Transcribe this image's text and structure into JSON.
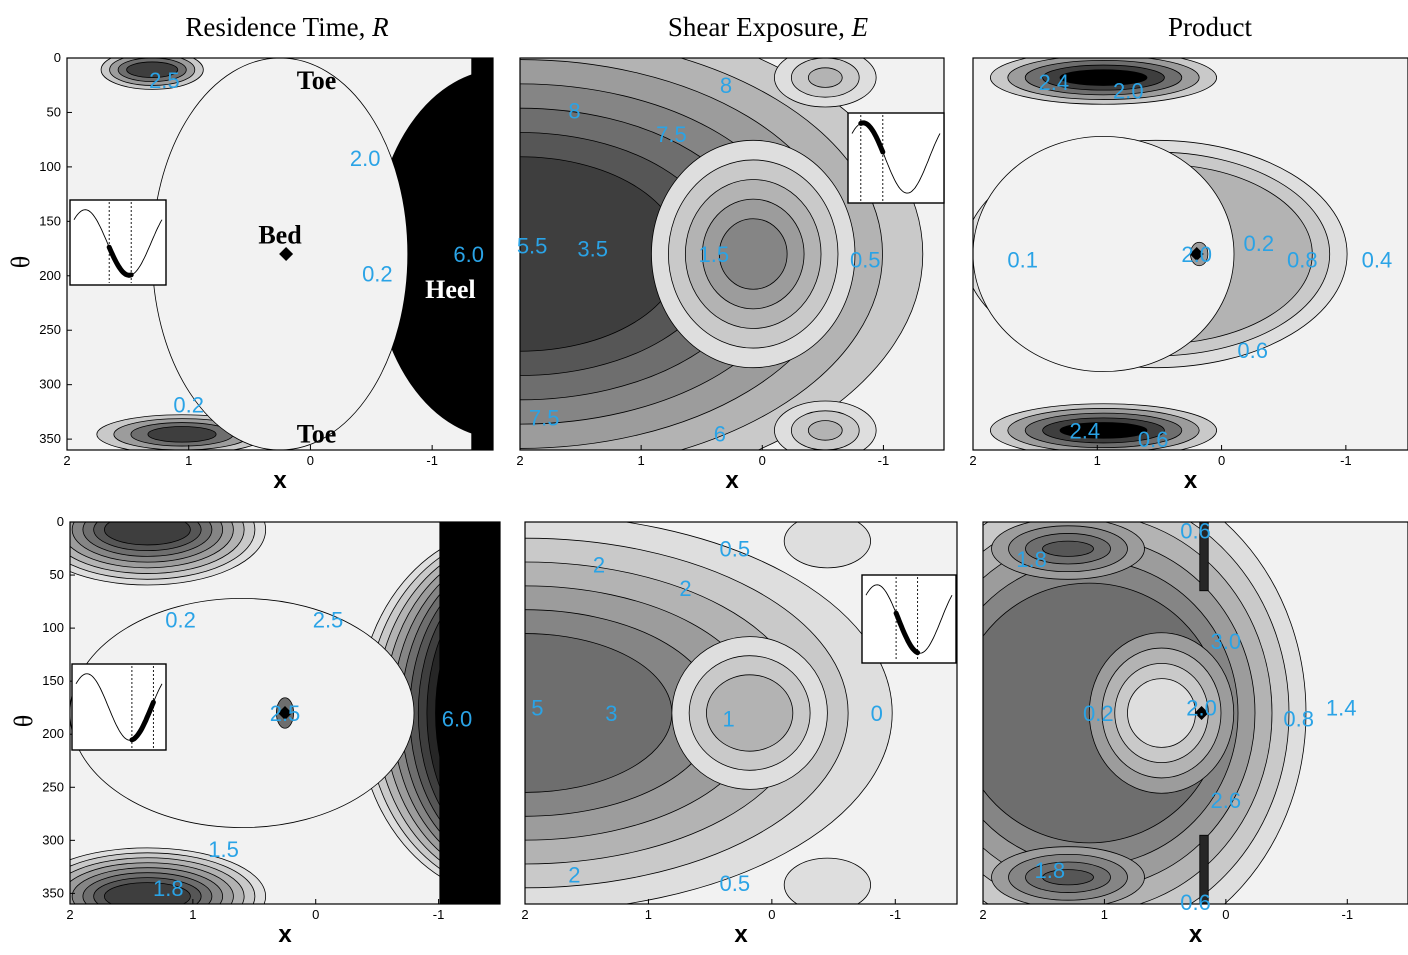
{
  "figure": {
    "column_titles": [
      {
        "text": "Residence Time, ",
        "italic": "R"
      },
      {
        "text": "Shear Exposure, ",
        "italic": "E"
      },
      {
        "text": "Product",
        "italic": ""
      }
    ]
  },
  "colors": {
    "contour_label": "#2aa3e6",
    "fill_levels": [
      "#f2f2f2",
      "#dedede",
      "#c9c9c9",
      "#b3b3b3",
      "#9c9c9c",
      "#858585",
      "#6e6e6e",
      "#565656",
      "#3e3e3e",
      "#262626",
      "#000000"
    ]
  },
  "chart_data": [
    {
      "type": "heatmap",
      "row": 1,
      "column": "Residence Time, R",
      "xlabel": "x",
      "ylabel": "θ",
      "xlim": [
        2,
        -1.5
      ],
      "ylim": [
        360,
        0
      ],
      "xticks": [
        "2",
        "1",
        "0",
        "-1"
      ],
      "yticks": [
        "0",
        "50",
        "100",
        "150",
        "200",
        "250",
        "300",
        "350"
      ],
      "contour_labels": [
        {
          "text": "2.5",
          "x": 1.2,
          "y": 20
        },
        {
          "text": "2.0",
          "x": -0.45,
          "y": 92
        },
        {
          "text": "0.2",
          "x": -0.55,
          "y": 198
        },
        {
          "text": "6.0",
          "x": -1.3,
          "y": 180
        },
        {
          "text": "0.2",
          "x": 1.0,
          "y": 318
        }
      ],
      "annotations": [
        {
          "text": "Toe",
          "x": -0.05,
          "y": 20,
          "color": "#000000"
        },
        {
          "text": "Bed",
          "x": 0.25,
          "y": 162,
          "color": "#000000"
        },
        {
          "text": "Heel",
          "x": -1.15,
          "y": 212,
          "color": "#ffffff"
        },
        {
          "text": "Toe",
          "x": -0.05,
          "y": 345,
          "color": "#000000"
        }
      ],
      "marker": {
        "x": 0.2,
        "y": 180
      },
      "inset_phase": [
        0.4,
        0.65
      ]
    },
    {
      "type": "heatmap",
      "row": 1,
      "column": "Shear Exposure, E",
      "xlabel": "x",
      "xlim": [
        2,
        -1.5
      ],
      "ylim": [
        360,
        0
      ],
      "xticks": [
        "2",
        "1",
        "0",
        "-1"
      ],
      "contour_labels": [
        {
          "text": "8",
          "x": 0.3,
          "y": 25
        },
        {
          "text": "8",
          "x": 1.55,
          "y": 48
        },
        {
          "text": "7.5",
          "x": 0.75,
          "y": 70
        },
        {
          "text": "5.5",
          "x": 1.9,
          "y": 172
        },
        {
          "text": "3.5",
          "x": 1.4,
          "y": 175
        },
        {
          "text": "1.5",
          "x": 0.4,
          "y": 180
        },
        {
          "text": "0.5",
          "x": -0.85,
          "y": 185
        },
        {
          "text": "7.5",
          "x": 1.8,
          "y": 330
        },
        {
          "text": "6",
          "x": 0.35,
          "y": 345
        }
      ],
      "inset_phase": [
        0.1,
        0.35
      ]
    },
    {
      "type": "heatmap",
      "row": 1,
      "column": "Product",
      "xlabel": "x",
      "xlim": [
        2,
        -1.5
      ],
      "ylim": [
        360,
        0
      ],
      "xticks": [
        "2",
        "1",
        "0",
        "-1"
      ],
      "contour_labels": [
        {
          "text": "2.4",
          "x": 1.35,
          "y": 22
        },
        {
          "text": "2.0",
          "x": 0.75,
          "y": 30
        },
        {
          "text": "0.1",
          "x": 1.6,
          "y": 185
        },
        {
          "text": "2.0",
          "x": 0.2,
          "y": 180
        },
        {
          "text": "0.2",
          "x": -0.3,
          "y": 170
        },
        {
          "text": "0.8",
          "x": -0.65,
          "y": 185
        },
        {
          "text": "0.4",
          "x": -1.25,
          "y": 185
        },
        {
          "text": "0.6",
          "x": -0.25,
          "y": 268
        },
        {
          "text": "2.4",
          "x": 1.1,
          "y": 342
        },
        {
          "text": "0.6",
          "x": 0.55,
          "y": 350
        }
      ],
      "marker": {
        "x": 0.2,
        "y": 180
      }
    },
    {
      "type": "heatmap",
      "row": 2,
      "column": "Residence Time, R",
      "xlabel": "x",
      "ylabel": "θ",
      "xlim": [
        2,
        -1.5
      ],
      "ylim": [
        360,
        0
      ],
      "xticks": [
        "2",
        "1",
        "0",
        "-1"
      ],
      "yticks": [
        "0",
        "50",
        "100",
        "150",
        "200",
        "250",
        "300",
        "350"
      ],
      "contour_labels": [
        {
          "text": "0.2",
          "x": 1.1,
          "y": 92
        },
        {
          "text": "2.5",
          "x": -0.1,
          "y": 92
        },
        {
          "text": "2.5",
          "x": 0.25,
          "y": 180
        },
        {
          "text": "6.0",
          "x": -1.15,
          "y": 185
        },
        {
          "text": "1.5",
          "x": 0.75,
          "y": 308
        },
        {
          "text": "1.8",
          "x": 1.2,
          "y": 345
        }
      ],
      "marker": {
        "x": 0.25,
        "y": 180
      },
      "inset_phase": [
        0.65,
        0.9
      ]
    },
    {
      "type": "heatmap",
      "row": 2,
      "column": "Shear Exposure, E",
      "xlabel": "x",
      "xlim": [
        2,
        -1.5
      ],
      "ylim": [
        360,
        0
      ],
      "xticks": [
        "2",
        "1",
        "0",
        "-1"
      ],
      "contour_labels": [
        {
          "text": "0.5",
          "x": 0.3,
          "y": 25
        },
        {
          "text": "2",
          "x": 1.4,
          "y": 40
        },
        {
          "text": "2",
          "x": 0.7,
          "y": 62
        },
        {
          "text": "5",
          "x": 1.9,
          "y": 175
        },
        {
          "text": "3",
          "x": 1.3,
          "y": 180
        },
        {
          "text": "1",
          "x": 0.35,
          "y": 185
        },
        {
          "text": "0",
          "x": -0.85,
          "y": 180
        },
        {
          "text": "2",
          "x": 1.6,
          "y": 332
        },
        {
          "text": "0.5",
          "x": 0.3,
          "y": 340
        }
      ],
      "inset_phase": [
        0.35,
        0.6
      ]
    },
    {
      "type": "heatmap",
      "row": 2,
      "column": "Product",
      "xlabel": "x",
      "xlim": [
        2,
        -1.5
      ],
      "ylim": [
        360,
        0
      ],
      "xticks": [
        "2",
        "1",
        "0",
        "-1"
      ],
      "contour_labels": [
        {
          "text": "0.6",
          "x": 0.25,
          "y": 8
        },
        {
          "text": "1.8",
          "x": 1.6,
          "y": 35
        },
        {
          "text": "3.0",
          "x": 0.0,
          "y": 112
        },
        {
          "text": "0.2",
          "x": 1.05,
          "y": 180
        },
        {
          "text": "2.0",
          "x": 0.2,
          "y": 175
        },
        {
          "text": "0.8",
          "x": -0.6,
          "y": 185
        },
        {
          "text": "1.4",
          "x": -0.95,
          "y": 175
        },
        {
          "text": "2.6",
          "x": 0.0,
          "y": 262
        },
        {
          "text": "1.8",
          "x": 1.45,
          "y": 328
        },
        {
          "text": "0.6",
          "x": 0.25,
          "y": 358
        }
      ],
      "marker": {
        "x": 0.2,
        "y": 180
      }
    }
  ]
}
